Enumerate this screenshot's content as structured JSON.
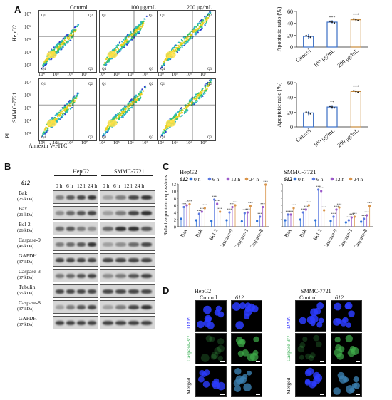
{
  "panels": {
    "a": "A",
    "b": "B",
    "c": "C",
    "d": "D"
  },
  "flow": {
    "cols": [
      "Control",
      "100 μg/mL",
      "200 μg/mL"
    ],
    "rows": [
      "HepG2",
      "SMMC-7721"
    ],
    "y_axis": "PI",
    "x_axis": "Annexin V-FITC",
    "ticks": [
      "10⁴",
      "10⁵",
      "10⁶",
      "10⁷"
    ],
    "yticks": [
      "10⁷",
      "10⁶",
      "10⁵",
      "10⁴",
      "10³"
    ],
    "quad": [
      "Q1",
      "Q2",
      "Q3",
      "Q4"
    ]
  },
  "bar_charts": {
    "ylabel": "Apoptotic ratio (%)",
    "categories": [
      "Control",
      "100 μg/mL",
      "200 μg/mL"
    ]
  },
  "chart_data": [
    {
      "type": "bar",
      "ylabel": "Apoptotic ratio (%)",
      "categories": [
        "Control",
        "100 μg/mL",
        "200 μg/mL"
      ],
      "values": [
        18,
        42,
        46
      ],
      "ylim": [
        0,
        60
      ],
      "yticks": [
        0,
        20,
        40,
        60
      ],
      "sig": [
        "",
        "***",
        "***"
      ],
      "colors": [
        "#3b6fc4",
        "#3b6fc4",
        "#c98a3a"
      ]
    },
    {
      "type": "bar",
      "ylabel": "Apoptotic ratio (%)",
      "categories": [
        "Control",
        "100 μg/mL",
        "200 μg/mL"
      ],
      "values": [
        19,
        27,
        48
      ],
      "ylim": [
        0,
        60
      ],
      "yticks": [
        0,
        20,
        40,
        60
      ],
      "sig": [
        "",
        "**",
        "***"
      ],
      "colors": [
        "#3b6fc4",
        "#3b6fc4",
        "#c98a3a"
      ]
    },
    {
      "type": "scatter",
      "title": "HepG2",
      "ylabel": "Relative protein expressions",
      "categories": [
        "Bax",
        "Bak",
        "Bcl-2",
        "Caspase-9",
        "Caspase-3",
        "Caspase-8"
      ],
      "ylim": [
        0,
        12
      ],
      "yticks": [
        0,
        2,
        4,
        6,
        8,
        10,
        12
      ],
      "series": [
        {
          "name": "0 h",
          "values": [
            2.2,
            1.8,
            1.6,
            1.8,
            1.5,
            1.6
          ]
        },
        {
          "name": "6 h",
          "values": [
            5.5,
            3.6,
            7.6,
            4.0,
            3.8,
            2.8
          ]
        },
        {
          "name": "12 h",
          "values": [
            6.0,
            4.2,
            6.4,
            5.5,
            4.0,
            5.5
          ]
        },
        {
          "name": "24 h",
          "values": [
            6.3,
            5.2,
            4.2,
            6.0,
            5.8,
            11.8
          ]
        }
      ],
      "legend_label": "612"
    },
    {
      "type": "scatter",
      "title": "SMMC-7721",
      "ylabel": "",
      "categories": [
        "Bax",
        "Bak",
        "Bcl-2",
        "Caspase-9",
        "Caspase-3",
        "Caspase-8"
      ],
      "ylim": [
        0,
        12
      ],
      "yticks": [
        0,
        2,
        4,
        6,
        8,
        10,
        12
      ],
      "series": [
        {
          "name": "0 h",
          "values": [
            1.8,
            2.0,
            1.8,
            1.6,
            1.2,
            1.4
          ]
        },
        {
          "name": "6 h",
          "values": [
            3.4,
            4.0,
            10.4,
            2.8,
            1.8,
            2.2
          ]
        },
        {
          "name": "12 h",
          "values": [
            3.4,
            4.8,
            10.0,
            4.8,
            2.6,
            3.2
          ]
        },
        {
          "name": "24 h",
          "values": [
            5.2,
            6.0,
            4.6,
            5.4,
            2.8,
            5.8
          ]
        }
      ],
      "legend_label": "612"
    }
  ],
  "blot": {
    "compound": "612",
    "cells": [
      "HepG2",
      "SMMC-7721"
    ],
    "times": [
      "0 h",
      "6 h",
      "12 h",
      "24 h"
    ],
    "proteins": [
      {
        "name": "Bak",
        "kda": "(25 kDa)"
      },
      {
        "name": "Bax",
        "kda": "(21 kDa)"
      },
      {
        "name": "Bcl-2",
        "kda": "(26 kDa)"
      },
      {
        "name": "Caspase-9",
        "kda": "(46 kDa)"
      },
      {
        "name": "GAPDH",
        "kda": "(37 kDa)"
      },
      {
        "name": "Caspase-3",
        "kda": "(37 kDa)"
      },
      {
        "name": "Tubulin",
        "kda": "(55 kDa)"
      },
      {
        "name": "Caspase-8",
        "kda": "(37 kDa)"
      },
      {
        "name": "GAPDH",
        "kda": "(37 kDa)"
      }
    ]
  },
  "ifpanel": {
    "cells": [
      "HepG2",
      "SMMC-7721"
    ],
    "conds": [
      "Control",
      "612"
    ],
    "rows": [
      "DAPI",
      "Caspase-3/7",
      "Merged"
    ],
    "row_colors": [
      "#2b2bff",
      "#27a845",
      "#111111"
    ]
  },
  "colors": {
    "blue": "#3b6fc4",
    "orange": "#c98a3a",
    "s0": "#2a6ed8",
    "s6": "#5b79e0",
    "s12": "#9b59c9",
    "s24": "#d9944a"
  }
}
